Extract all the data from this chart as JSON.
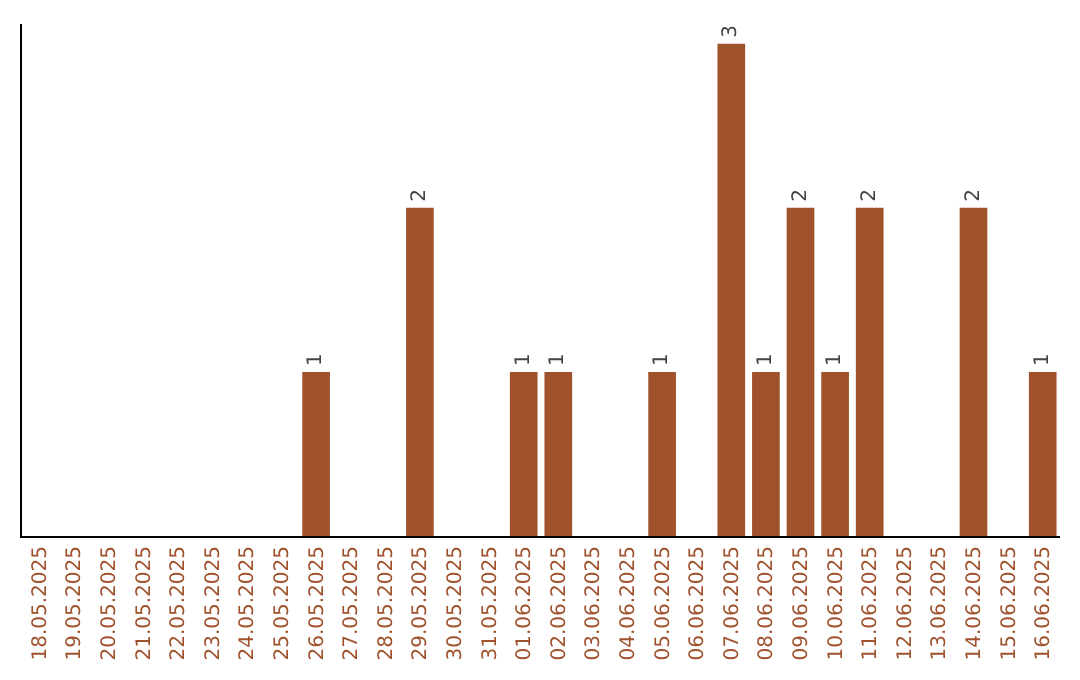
{
  "chart_data": {
    "type": "bar",
    "categories": [
      "18.05.2025",
      "19.05.2025",
      "20.05.2025",
      "21.05.2025",
      "22.05.2025",
      "23.05.2025",
      "24.05.2025",
      "25.05.2025",
      "26.05.2025",
      "27.05.2025",
      "28.05.2025",
      "29.05.2025",
      "30.05.2025",
      "31.05.2025",
      "01.06.2025",
      "02.06.2025",
      "03.06.2025",
      "04.06.2025",
      "05.06.2025",
      "06.06.2025",
      "07.06.2025",
      "08.06.2025",
      "09.06.2025",
      "10.06.2025",
      "11.06.2025",
      "12.06.2025",
      "13.06.2025",
      "14.06.2025",
      "15.06.2025",
      "16.06.2025"
    ],
    "values": [
      0,
      0,
      0,
      0,
      0,
      0,
      0,
      0,
      1,
      0,
      0,
      2,
      0,
      0,
      1,
      1,
      0,
      0,
      1,
      0,
      3,
      1,
      2,
      1,
      2,
      0,
      0,
      2,
      0,
      1
    ],
    "value_labels": [
      null,
      null,
      null,
      null,
      null,
      null,
      null,
      null,
      "1",
      null,
      null,
      "2",
      null,
      null,
      "1",
      "1",
      null,
      null,
      "1",
      null,
      "3",
      "1",
      "2",
      "1",
      "2",
      null,
      null,
      "2",
      null,
      "1"
    ],
    "color": "#a0522d",
    "ylim": [
      0,
      3
    ],
    "tick_labels": "x"
  }
}
